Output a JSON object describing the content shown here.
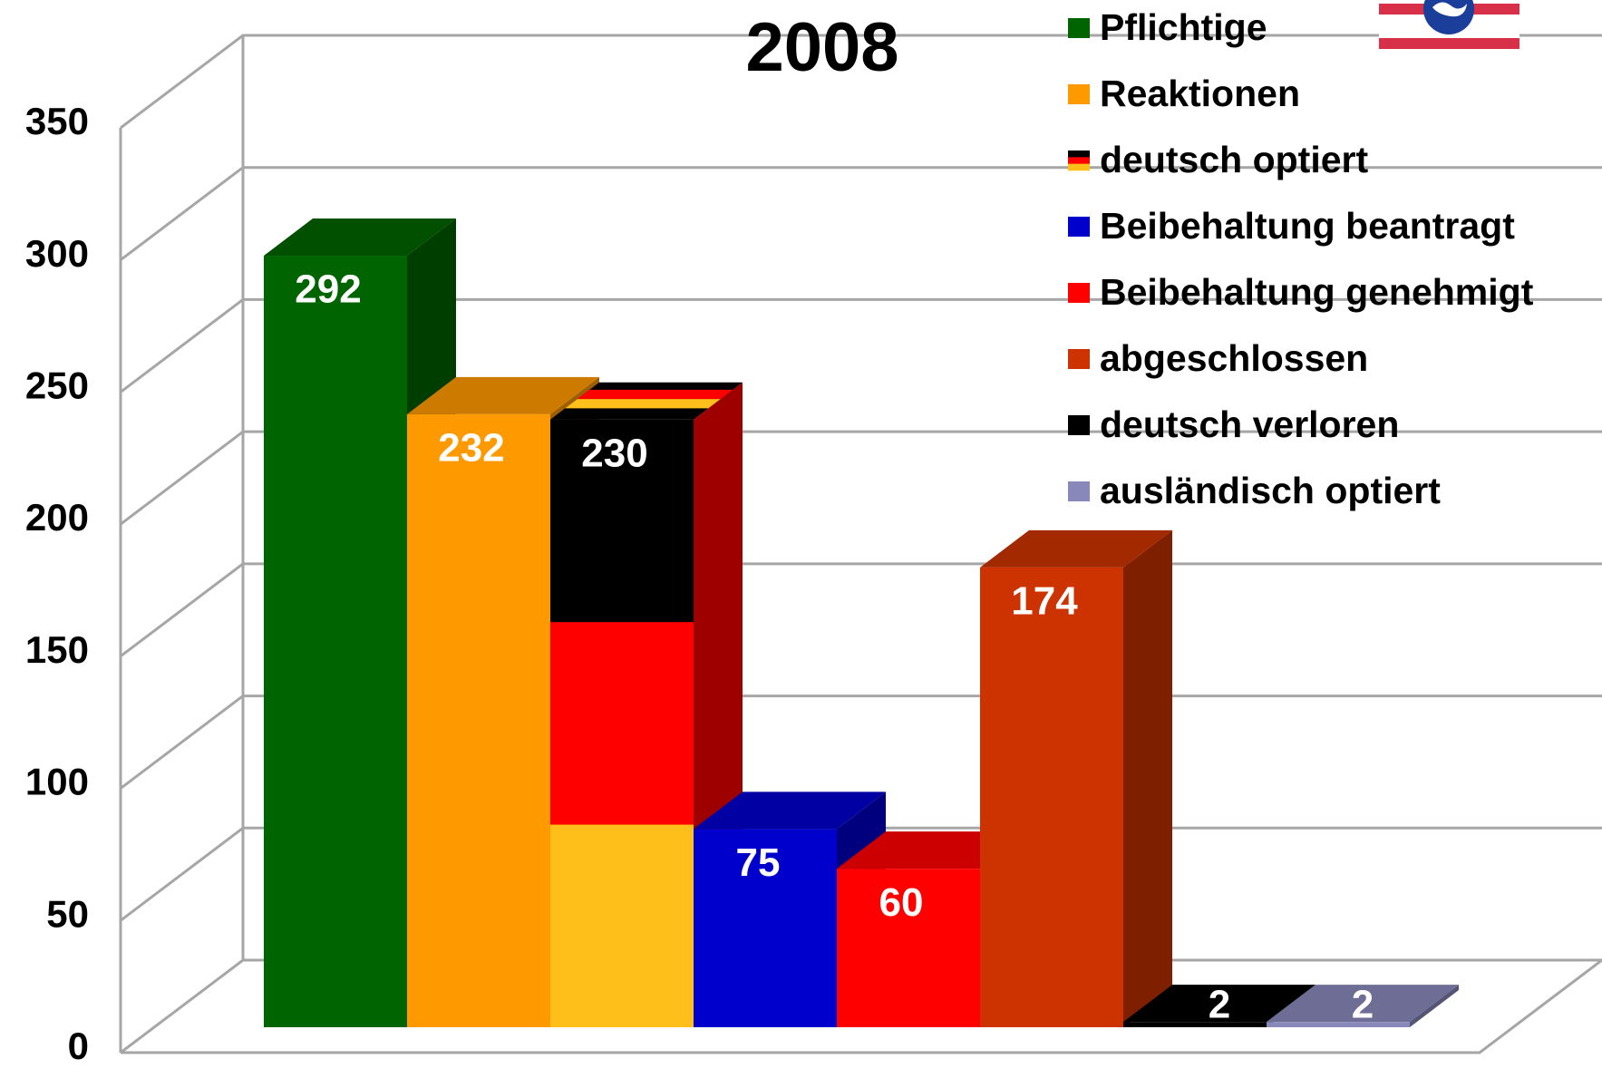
{
  "chart_data": {
    "type": "bar3d",
    "title": "2008",
    "ylim": [
      0,
      350
    ],
    "yticks": [
      0,
      50,
      100,
      150,
      200,
      250,
      300,
      350
    ],
    "grid": true,
    "legend": "top-right",
    "series": [
      {
        "name": "Pflichtige",
        "color": "#006400",
        "values": [
          292
        ]
      },
      {
        "name": "Reaktionen",
        "color": "#ff9900",
        "values": [
          232
        ]
      },
      {
        "name": "deutsch optiert",
        "color": [
          "#000000",
          "#ff0000",
          "#ffbf1a"
        ],
        "values": [
          230
        ]
      },
      {
        "name": "Beibehaltung beantragt",
        "color": "#0000cc",
        "values": [
          75
        ]
      },
      {
        "name": "Beibehaltung genehmigt",
        "color": "#ff0000",
        "values": [
          60
        ]
      },
      {
        "name": "abgeschlossen",
        "color": "#cc3300",
        "values": [
          174
        ]
      },
      {
        "name": "deutsch verloren",
        "color": "#000000",
        "values": [
          2
        ]
      },
      {
        "name": "ausländisch optiert",
        "color": "#8888bb",
        "values": [
          2
        ]
      }
    ]
  }
}
